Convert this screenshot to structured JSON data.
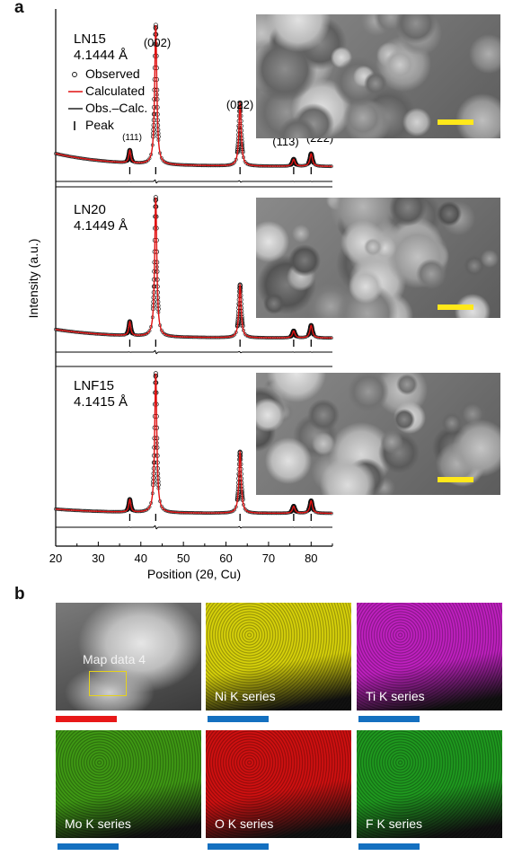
{
  "panel_a": {
    "letter": "a"
  },
  "panel_b": {
    "letter": "b"
  },
  "chart_data": {
    "type": "line",
    "xlabel": "Position (2θ, Cu)",
    "ylabel": "Intensity (a.u.)",
    "xlim": [
      20,
      85
    ],
    "xticks": [
      "20",
      "30",
      "40",
      "50",
      "60",
      "70",
      "80"
    ],
    "legend": {
      "placement": "top-left (LN15 panel)",
      "entries": [
        "Observed",
        "Calculated",
        "Obs.–Calc.",
        "Peak"
      ]
    },
    "peak_labels": [
      "(111)",
      "(002)",
      "(022)",
      "(113)",
      "(222)"
    ],
    "peak_positions": [
      37.4,
      43.5,
      63.3,
      75.9,
      80.0
    ],
    "subplots": [
      {
        "sample": "LN15",
        "lattice": "4.1444 Å",
        "peak_rel_intensity": [
          0.09,
          1.0,
          0.45,
          0.05,
          0.09
        ],
        "bg_start": 0.12,
        "bg_end": 0.03,
        "max_height": 155
      },
      {
        "sample": "LN20",
        "lattice": "4.1449 Å",
        "peak_rel_intensity": [
          0.1,
          1.0,
          0.38,
          0.05,
          0.09
        ],
        "bg_start": 0.08,
        "bg_end": 0.03,
        "max_height": 155
      },
      {
        "sample": "LNF15",
        "lattice": "4.1415 Å",
        "peak_rel_intensity": [
          0.09,
          1.0,
          0.44,
          0.05,
          0.09
        ],
        "bg_start": 0.04,
        "bg_end": 0.02,
        "max_height": 155
      }
    ]
  },
  "edx_maps": {
    "selection_label": "Map data 4",
    "maps": [
      {
        "label": "",
        "kind": "haadf",
        "color": "#9a9a9a"
      },
      {
        "label": "Ni K series",
        "kind": "map",
        "color": "#d8d20a"
      },
      {
        "label": "Ti K series",
        "kind": "map",
        "color": "#c020c0"
      },
      {
        "label": "Mo K series",
        "kind": "map",
        "color": "#3f9a14"
      },
      {
        "label": "O K series",
        "kind": "map",
        "color": "#d01010"
      },
      {
        "label": "F K series",
        "kind": "map",
        "color": "#1f9a1f"
      }
    ],
    "scale_bar_colors": [
      "#e81818",
      "#1470c0",
      "#1470c0",
      "#1470c0",
      "#1470c0",
      "#1470c0"
    ]
  },
  "colors": {
    "calculated": "#e01010",
    "observed": "#111111",
    "sem_scale_bar": "#ffe81a"
  }
}
